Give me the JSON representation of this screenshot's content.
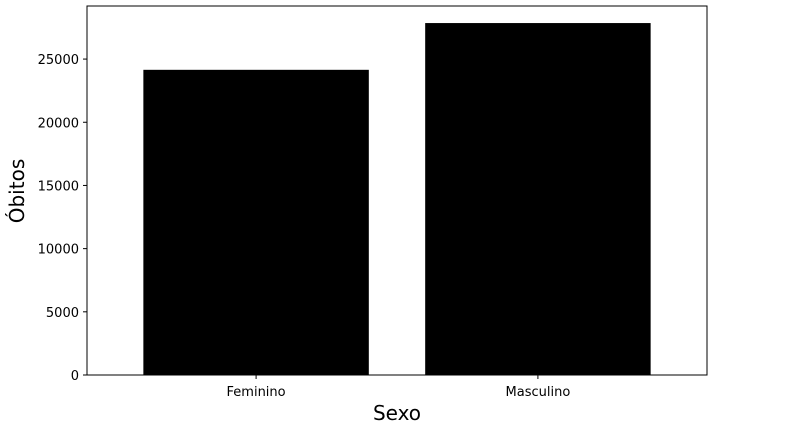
{
  "chart_data": {
    "type": "bar",
    "categories": [
      "Feminino",
      "Masculino"
    ],
    "values": [
      24150,
      27850
    ],
    "title": "",
    "xlabel": "Sexo",
    "ylabel": "Óbitos",
    "ylim": [
      0,
      29200
    ],
    "yticks": [
      0,
      5000,
      10000,
      15000,
      20000,
      25000
    ],
    "ytick_labels": [
      "0",
      "5000",
      "10000",
      "15000",
      "20000",
      "25000"
    ],
    "bar_color": "#000000",
    "grid": false,
    "legend": "none"
  }
}
